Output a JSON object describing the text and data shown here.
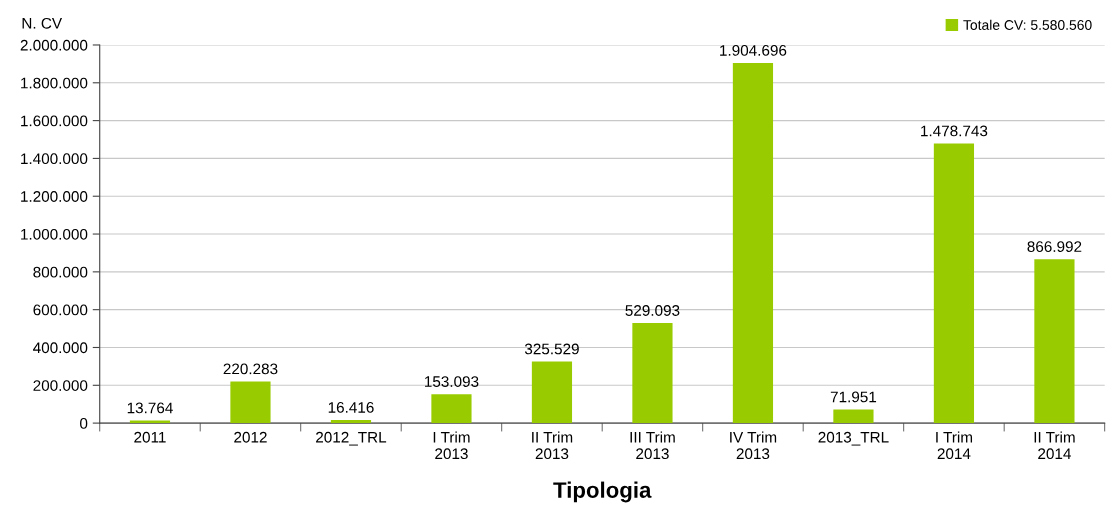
{
  "chart_data": {
    "type": "bar",
    "xlabel": "Tipologia",
    "ylabel": "N. CV",
    "categories": [
      "2011",
      "2012",
      "2012_TRL",
      "I Trim\n2013",
      "II Trim\n2013",
      "III Trim\n2013",
      "IV Trim\n2013",
      "2013_TRL",
      "I Trim\n2014",
      "II Trim\n2014"
    ],
    "series": [
      {
        "name": "Totale CV: 5.580.560",
        "color": "#99cc00",
        "values": [
          13764,
          220283,
          16416,
          153093,
          325529,
          529093,
          1904696,
          71951,
          1478743,
          866992
        ],
        "value_labels": [
          "13.764",
          "220.283",
          "16.416",
          "153.093",
          "325.529",
          "529.093",
          "1.904.696",
          "71.951",
          "1.478.743",
          "866.992"
        ]
      }
    ],
    "ylim": [
      0,
      2000000
    ],
    "yticks": [
      {
        "value": 0,
        "label": "0"
      },
      {
        "value": 200000,
        "label": "200.000"
      },
      {
        "value": 400000,
        "label": "400.000"
      },
      {
        "value": 600000,
        "label": "600.000"
      },
      {
        "value": 800000,
        "label": "800.000"
      },
      {
        "value": 1000000,
        "label": "1.000.000"
      },
      {
        "value": 1200000,
        "label": "1.200.000"
      },
      {
        "value": 1400000,
        "label": "1.400.000"
      },
      {
        "value": 1600000,
        "label": "1.600.000"
      },
      {
        "value": 1800000,
        "label": "1.800.000"
      },
      {
        "value": 2000000,
        "label": "2.000.000"
      }
    ],
    "grid": "y",
    "legend": "top right"
  }
}
